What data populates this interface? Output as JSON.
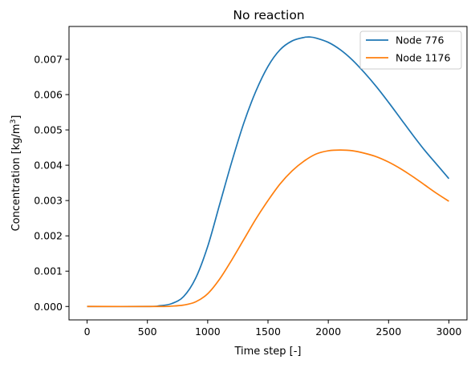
{
  "chart_data": {
    "type": "line",
    "title": "No reaction",
    "xlabel": "Time step [-]",
    "ylabel": "Concentration [kg/m",
    "ylabel_sup": "3",
    "ylabel_end": "]",
    "xlim": [
      -150,
      3150
    ],
    "ylim": [
      -0.00038,
      0.00793
    ],
    "xticks": [
      0,
      500,
      1000,
      1500,
      2000,
      2500,
      3000
    ],
    "xtick_labels": [
      "0",
      "500",
      "1000",
      "1500",
      "2000",
      "2500",
      "3000"
    ],
    "yticks": [
      0.0,
      0.001,
      0.002,
      0.003,
      0.004,
      0.005,
      0.006,
      0.007
    ],
    "ytick_labels": [
      "0.000",
      "0.001",
      "0.002",
      "0.003",
      "0.004",
      "0.005",
      "0.006",
      "0.007"
    ],
    "grid": false,
    "legend_position": "top-right",
    "series": [
      {
        "name": "Node 776",
        "color": "#1f77b4",
        "points": [
          [
            0,
            0
          ],
          [
            500,
            0
          ],
          [
            600,
            2e-05
          ],
          [
            700,
            8e-05
          ],
          [
            800,
            0.00028
          ],
          [
            900,
            0.0008
          ],
          [
            1000,
            0.0017
          ],
          [
            1100,
            0.0029
          ],
          [
            1200,
            0.0041
          ],
          [
            1300,
            0.0052
          ],
          [
            1400,
            0.0061
          ],
          [
            1500,
            0.0068
          ],
          [
            1600,
            0.00727
          ],
          [
            1700,
            0.00752
          ],
          [
            1800,
            0.00762
          ],
          [
            1850,
            0.00763
          ],
          [
            1900,
            0.0076
          ],
          [
            2000,
            0.00748
          ],
          [
            2100,
            0.00727
          ],
          [
            2200,
            0.00698
          ],
          [
            2300,
            0.00662
          ],
          [
            2400,
            0.00622
          ],
          [
            2500,
            0.00578
          ],
          [
            2600,
            0.00532
          ],
          [
            2700,
            0.00486
          ],
          [
            2800,
            0.00442
          ],
          [
            2900,
            0.00402
          ],
          [
            3000,
            0.00362
          ]
        ]
      },
      {
        "name": "Node 1176",
        "color": "#ff7f0e",
        "points": [
          [
            0,
            0
          ],
          [
            600,
            0
          ],
          [
            700,
            1e-05
          ],
          [
            800,
            4e-05
          ],
          [
            900,
            0.00013
          ],
          [
            1000,
            0.00036
          ],
          [
            1100,
            0.00078
          ],
          [
            1200,
            0.00132
          ],
          [
            1300,
            0.0019
          ],
          [
            1400,
            0.00248
          ],
          [
            1500,
            0.003
          ],
          [
            1600,
            0.00347
          ],
          [
            1700,
            0.00384
          ],
          [
            1800,
            0.00412
          ],
          [
            1900,
            0.00432
          ],
          [
            2000,
            0.00441
          ],
          [
            2100,
            0.00443
          ],
          [
            2200,
            0.00441
          ],
          [
            2300,
            0.00434
          ],
          [
            2400,
            0.00424
          ],
          [
            2500,
            0.00409
          ],
          [
            2600,
            0.0039
          ],
          [
            2700,
            0.00368
          ],
          [
            2800,
            0.00344
          ],
          [
            2900,
            0.0032
          ],
          [
            3000,
            0.00298
          ]
        ]
      }
    ]
  }
}
